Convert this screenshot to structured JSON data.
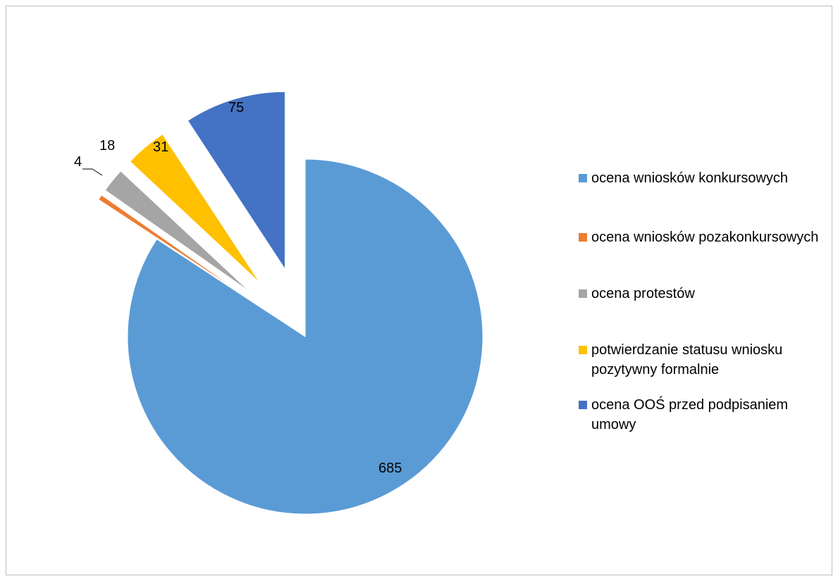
{
  "chart_data": {
    "type": "pie",
    "exploded": true,
    "legend_position": "right",
    "slices": [
      {
        "label": "ocena wniosków konkursowych",
        "value": 685,
        "color": "#5b9bd5",
        "exploded": false
      },
      {
        "label": "ocena wniosków pozakonkursowych",
        "value": 4,
        "color": "#ed7d31",
        "exploded": true
      },
      {
        "label": "ocena protestów",
        "value": 18,
        "color": "#a5a5a5",
        "exploded": true
      },
      {
        "label": "potwierdzanie statusu wniosku pozytywny formalnie",
        "value": 31,
        "color": "#ffc000",
        "exploded": true
      },
      {
        "label": "ocena OOŚ przed podpisaniem umowy",
        "value": 75,
        "color": "#4472c4",
        "exploded": true
      }
    ]
  }
}
